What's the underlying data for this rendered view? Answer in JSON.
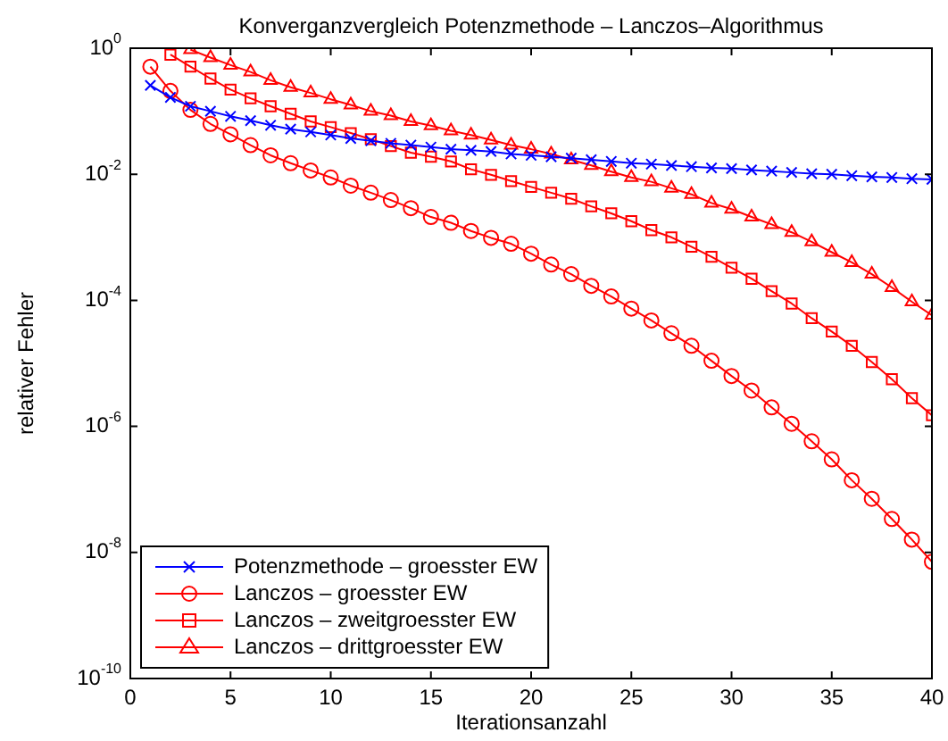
{
  "chart_data": {
    "type": "line",
    "title": "Konverganzvergleich Potenzmethode – Lanczos–Algorithmus",
    "xlabel": "Iterationsanzahl",
    "ylabel": "relativer Fehler",
    "x": [
      1,
      2,
      3,
      4,
      5,
      6,
      7,
      8,
      9,
      10,
      11,
      12,
      13,
      14,
      15,
      16,
      17,
      18,
      19,
      20,
      21,
      22,
      23,
      24,
      25,
      26,
      27,
      28,
      29,
      30,
      31,
      32,
      33,
      34,
      35,
      36,
      37,
      38,
      39,
      40
    ],
    "xlim": [
      0,
      40
    ],
    "xticks": [
      0,
      5,
      10,
      15,
      20,
      25,
      30,
      35,
      40
    ],
    "ylim": [
      1e-10,
      1
    ],
    "log": "y",
    "yticks": [
      {
        "value": 1e-10,
        "label": "10$^{-10}$"
      },
      {
        "value": 1e-08,
        "label": "10$^{-8}$"
      },
      {
        "value": 1e-06,
        "label": "10$^{-6}$"
      },
      {
        "value": 0.0001,
        "label": "10$^{-4}$"
      },
      {
        "value": 0.01,
        "label": "10$^{-2}$"
      },
      {
        "value": 1,
        "label": "10$^{0}$"
      }
    ],
    "grid": false,
    "legend": "bottom left",
    "series": [
      {
        "name": "Potenzmethode – groesster EW",
        "color": "#0000ff",
        "marker": "cross",
        "values": [
          0.257,
          0.166,
          0.12,
          0.1,
          0.083,
          0.071,
          0.06,
          0.052,
          0.047,
          0.042,
          0.037,
          0.034,
          0.031,
          0.029,
          0.027,
          0.025,
          0.024,
          0.023,
          0.021,
          0.02,
          0.019,
          0.018,
          0.017,
          0.016,
          0.015,
          0.0145,
          0.0138,
          0.0132,
          0.0126,
          0.0123,
          0.0117,
          0.0112,
          0.0107,
          0.0102,
          0.01,
          0.0095,
          0.0091,
          0.0089,
          0.0085,
          0.0083
        ]
      },
      {
        "name": "Lanczos – groesster EW",
        "color": "#ff0000",
        "marker": "circle",
        "values": [
          0.51,
          0.21,
          0.105,
          0.063,
          0.043,
          0.029,
          0.02,
          0.015,
          0.0115,
          0.0089,
          0.0066,
          0.0051,
          0.0039,
          0.0029,
          0.0021,
          0.0017,
          0.00126,
          0.00098,
          0.00079,
          0.00055,
          0.00037,
          0.00026,
          0.00017,
          0.000115,
          7.4e-05,
          4.8e-05,
          3e-05,
          1.9e-05,
          1.1e-05,
          6.3e-06,
          3.7e-06,
          2e-06,
          1.1e-06,
          5.8e-07,
          3e-07,
          1.4e-07,
          7.1e-08,
          3.4e-08,
          1.6e-08,
          7.1e-09
        ]
      },
      {
        "name": "Lanczos – zweitgroesster EW",
        "color": "#ff0000",
        "marker": "square",
        "values": [
          null,
          0.79,
          0.51,
          0.33,
          0.22,
          0.16,
          0.12,
          0.091,
          0.069,
          0.056,
          0.045,
          0.036,
          0.028,
          0.022,
          0.019,
          0.016,
          0.012,
          0.0098,
          0.0078,
          0.0063,
          0.0051,
          0.0041,
          0.0031,
          0.0024,
          0.0018,
          0.0013,
          0.001,
          0.00071,
          0.00049,
          0.00033,
          0.00022,
          0.00014,
          8.9e-05,
          5.2e-05,
          3.2e-05,
          1.9e-05,
          1.05e-05,
          5.6e-06,
          2.8e-06,
          1.5e-06
        ]
      },
      {
        "name": "Lanczos – drittgroesster EW",
        "color": "#ff0000",
        "marker": "triangle",
        "values": [
          null,
          null,
          0.95,
          0.71,
          0.54,
          0.42,
          0.31,
          0.24,
          0.195,
          0.155,
          0.126,
          0.1,
          0.085,
          0.069,
          0.059,
          0.049,
          0.042,
          0.035,
          0.029,
          0.025,
          0.021,
          0.017,
          0.0138,
          0.011,
          0.0089,
          0.0076,
          0.006,
          0.0048,
          0.0035,
          0.0028,
          0.0021,
          0.0016,
          0.0012,
          0.00085,
          0.00058,
          0.0004,
          0.00026,
          0.00016,
          9.5e-05,
          5.8e-05
        ]
      }
    ]
  }
}
